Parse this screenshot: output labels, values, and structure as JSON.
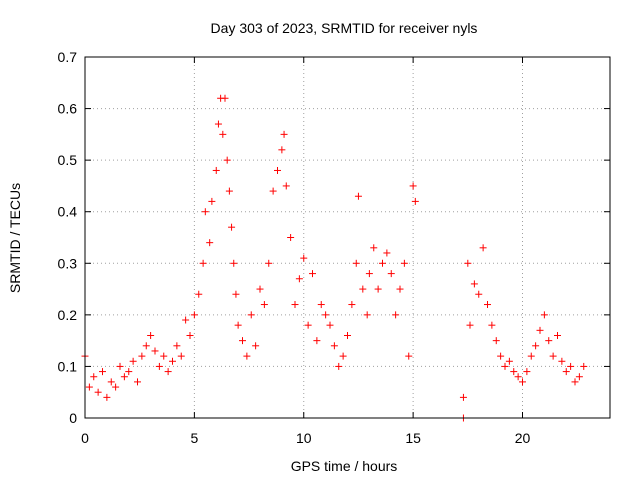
{
  "chart_data": {
    "type": "scatter",
    "title": "Day 303 of 2023, SRMTID for receiver nyls",
    "xlabel": "GPS time / hours",
    "ylabel": "SRMTID / TECUs",
    "xlim": [
      0,
      24
    ],
    "ylim": [
      0,
      0.7
    ],
    "x_ticks": [
      0,
      5,
      10,
      15,
      20
    ],
    "x_tick_labels": [
      "0",
      "5",
      "10",
      "15",
      "20"
    ],
    "y_ticks": [
      0,
      0.1,
      0.2,
      0.3,
      0.4,
      0.5,
      0.6,
      0.7
    ],
    "y_tick_labels": [
      "0",
      "0.1",
      "0.2",
      "0.3",
      "0.4",
      "0.5",
      "0.6",
      "0.7"
    ],
    "grid": true,
    "marker": "+",
    "color": "#ff0000",
    "series": [
      {
        "name": "SRMTID",
        "points": [
          [
            0.0,
            0.12
          ],
          [
            0.2,
            0.06
          ],
          [
            0.4,
            0.08
          ],
          [
            0.6,
            0.05
          ],
          [
            0.8,
            0.09
          ],
          [
            1.0,
            0.04
          ],
          [
            1.2,
            0.07
          ],
          [
            1.4,
            0.06
          ],
          [
            1.6,
            0.1
          ],
          [
            1.8,
            0.08
          ],
          [
            2.0,
            0.09
          ],
          [
            2.2,
            0.11
          ],
          [
            2.4,
            0.07
          ],
          [
            2.6,
            0.12
          ],
          [
            2.8,
            0.14
          ],
          [
            3.0,
            0.16
          ],
          [
            3.2,
            0.13
          ],
          [
            3.4,
            0.1
          ],
          [
            3.6,
            0.12
          ],
          [
            3.8,
            0.09
          ],
          [
            4.0,
            0.11
          ],
          [
            4.2,
            0.14
          ],
          [
            4.4,
            0.12
          ],
          [
            4.6,
            0.19
          ],
          [
            4.8,
            0.16
          ],
          [
            5.0,
            0.2
          ],
          [
            5.2,
            0.24
          ],
          [
            5.4,
            0.3
          ],
          [
            5.5,
            0.4
          ],
          [
            5.7,
            0.34
          ],
          [
            5.8,
            0.42
          ],
          [
            6.0,
            0.48
          ],
          [
            6.1,
            0.57
          ],
          [
            6.2,
            0.62
          ],
          [
            6.3,
            0.55
          ],
          [
            6.4,
            0.62
          ],
          [
            6.5,
            0.5
          ],
          [
            6.6,
            0.44
          ],
          [
            6.7,
            0.37
          ],
          [
            6.8,
            0.3
          ],
          [
            6.9,
            0.24
          ],
          [
            7.0,
            0.18
          ],
          [
            7.2,
            0.15
          ],
          [
            7.4,
            0.12
          ],
          [
            7.6,
            0.2
          ],
          [
            7.8,
            0.14
          ],
          [
            8.0,
            0.25
          ],
          [
            8.2,
            0.22
          ],
          [
            8.4,
            0.3
          ],
          [
            8.6,
            0.44
          ],
          [
            8.8,
            0.48
          ],
          [
            9.0,
            0.52
          ],
          [
            9.1,
            0.55
          ],
          [
            9.2,
            0.45
          ],
          [
            9.4,
            0.35
          ],
          [
            9.6,
            0.22
          ],
          [
            9.8,
            0.27
          ],
          [
            10.0,
            0.31
          ],
          [
            10.2,
            0.18
          ],
          [
            10.4,
            0.28
          ],
          [
            10.6,
            0.15
          ],
          [
            10.8,
            0.22
          ],
          [
            11.0,
            0.2
          ],
          [
            11.2,
            0.18
          ],
          [
            11.4,
            0.14
          ],
          [
            11.6,
            0.1
          ],
          [
            11.8,
            0.12
          ],
          [
            12.0,
            0.16
          ],
          [
            12.2,
            0.22
          ],
          [
            12.4,
            0.3
          ],
          [
            12.5,
            0.43
          ],
          [
            12.7,
            0.25
          ],
          [
            12.9,
            0.2
          ],
          [
            13.0,
            0.28
          ],
          [
            13.2,
            0.33
          ],
          [
            13.4,
            0.25
          ],
          [
            13.6,
            0.3
          ],
          [
            13.8,
            0.32
          ],
          [
            14.0,
            0.28
          ],
          [
            14.2,
            0.2
          ],
          [
            14.4,
            0.25
          ],
          [
            14.6,
            0.3
          ],
          [
            14.8,
            0.12
          ],
          [
            15.0,
            0.45
          ],
          [
            15.1,
            0.42
          ],
          [
            17.3,
            0.04
          ],
          [
            17.3,
            0.0
          ],
          [
            17.5,
            0.3
          ],
          [
            17.6,
            0.18
          ],
          [
            17.8,
            0.26
          ],
          [
            18.0,
            0.24
          ],
          [
            18.2,
            0.33
          ],
          [
            18.4,
            0.22
          ],
          [
            18.6,
            0.18
          ],
          [
            18.8,
            0.15
          ],
          [
            19.0,
            0.12
          ],
          [
            19.2,
            0.1
          ],
          [
            19.4,
            0.11
          ],
          [
            19.6,
            0.09
          ],
          [
            19.8,
            0.08
          ],
          [
            20.0,
            0.07
          ],
          [
            20.2,
            0.09
          ],
          [
            20.4,
            0.12
          ],
          [
            20.6,
            0.14
          ],
          [
            20.8,
            0.17
          ],
          [
            21.0,
            0.2
          ],
          [
            21.2,
            0.15
          ],
          [
            21.4,
            0.12
          ],
          [
            21.6,
            0.16
          ],
          [
            21.8,
            0.11
          ],
          [
            22.0,
            0.09
          ],
          [
            22.2,
            0.1
          ],
          [
            22.4,
            0.07
          ],
          [
            22.6,
            0.08
          ],
          [
            22.8,
            0.1
          ]
        ]
      }
    ]
  }
}
